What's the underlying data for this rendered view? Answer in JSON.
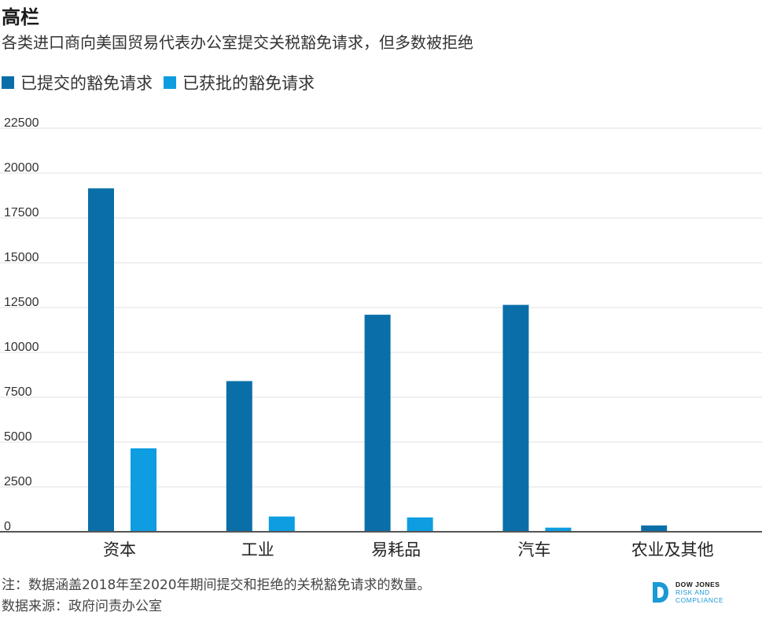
{
  "title": "高栏",
  "subtitle": "各类进口商向美国贸易代表办公室提交关税豁免请求，但多数被拒绝",
  "legend": [
    {
      "label": "已提交的豁免请求",
      "color": "#0a6fa8"
    },
    {
      "label": "已获批的豁免请求",
      "color": "#0d9de0"
    }
  ],
  "chart_data": {
    "type": "bar",
    "categories": [
      "资本",
      "工业",
      "易耗品",
      "汽车",
      "农业及其他"
    ],
    "series": [
      {
        "name": "已提交的豁免请求",
        "color": "#0a6fa8",
        "values": [
          19150,
          8400,
          12100,
          12650,
          350
        ]
      },
      {
        "name": "已获批的豁免请求",
        "color": "#0d9de0",
        "values": [
          4650,
          850,
          800,
          230,
          0
        ]
      }
    ],
    "ylim": [
      0,
      22500
    ],
    "yticks": [
      "0",
      "2500",
      "5000",
      "7500",
      "10000",
      "12500",
      "15000",
      "17500",
      "20000",
      "22500"
    ],
    "grid": true,
    "legend_position": "top-left"
  },
  "footnote": {
    "note": "注：数据涵盖2018年至2020年期间提交和拒绝的关税豁免请求的数量。",
    "source": "数据来源：政府问责办公室"
  },
  "logo": {
    "line1": "DOW JONES",
    "line2": "RISK AND",
    "line3": "COMPLIANCE"
  }
}
